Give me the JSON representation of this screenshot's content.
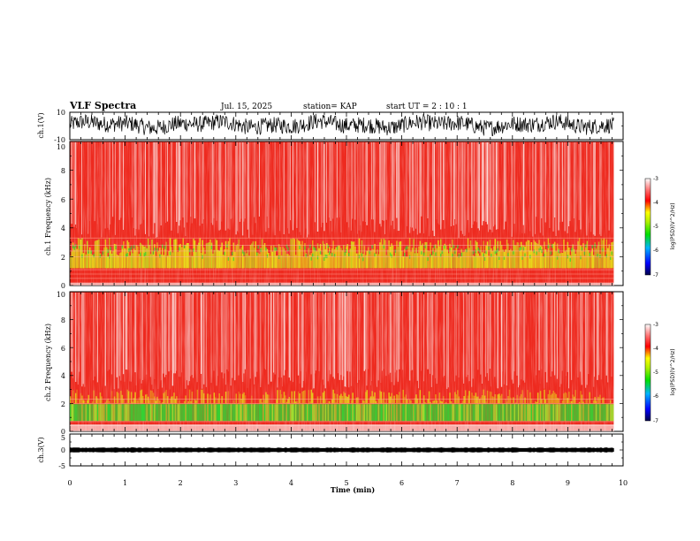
{
  "header": {
    "title": "VLF Spectra",
    "date": "Jul. 15, 2025",
    "station": "station= KAP",
    "start_ut": "start  UT =  2 : 10 : 1"
  },
  "chart_data": {
    "type": "spectrogram",
    "x": {
      "label": "Time  (min)",
      "lim": [
        0,
        10
      ],
      "ticks": [
        0,
        1,
        2,
        3,
        4,
        5,
        6,
        7,
        8,
        9,
        10
      ],
      "data_end": 9.83
    },
    "panels": [
      {
        "id": "ch1-waveform",
        "type": "line",
        "ylabel": "ch.1(V)",
        "ylim": [
          -10,
          10
        ],
        "ytick_labels": [
          "10",
          "-10"
        ],
        "signal_baseline": 1,
        "signal_amplitude": 6
      },
      {
        "id": "ch1-spectrogram",
        "type": "heatmap",
        "ylabel": "ch.1 Frequency (kHz)",
        "ylim": [
          0,
          10
        ],
        "ytick_labels": [
          "0",
          "2",
          "4",
          "6",
          "8",
          "10"
        ],
        "band_low_khz": [
          0.2,
          3.3
        ],
        "band_note": "yellow/green enhancement 1.2-3.3 kHz, red background to 10 kHz",
        "colorbar": {
          "label": "log(PSD)(V^2/Hz)",
          "range": [
            -7,
            -3
          ],
          "tick_labels": [
            "-3",
            "-4",
            "-5",
            "-6",
            "-7"
          ]
        }
      },
      {
        "id": "ch2-spectrogram",
        "type": "heatmap",
        "ylabel": "ch.2 Frequency (kHz)",
        "ylim": [
          0,
          10
        ],
        "ytick_labels": [
          "0",
          "2",
          "4",
          "6",
          "8",
          "10"
        ],
        "band_low_khz": [
          0.5,
          3.0
        ],
        "band_note": "green/yellow band 0.7-2 kHz, red background to 10 kHz",
        "colorbar": {
          "label": "log(PSD)(V^2/Hz)",
          "range": [
            -7,
            -3
          ],
          "tick_labels": [
            "-3",
            "-4",
            "-5",
            "-6",
            "-7"
          ]
        }
      },
      {
        "id": "ch3-waveform",
        "type": "line",
        "ylabel": "ch.3(V)",
        "ylim": [
          -5,
          5
        ],
        "ytick_labels": [
          "5",
          "0",
          "-5"
        ],
        "signal_baseline": 0,
        "signal_amplitude": 0.6
      }
    ]
  },
  "colors": {
    "background": "#ffffff",
    "axis": "#000000",
    "trace": "#000000",
    "spectrogram_base": "#ee2a1f",
    "spectrogram_white": "#ffffff",
    "band_yellow": "#e8e81a",
    "band_green": "#33d233"
  }
}
